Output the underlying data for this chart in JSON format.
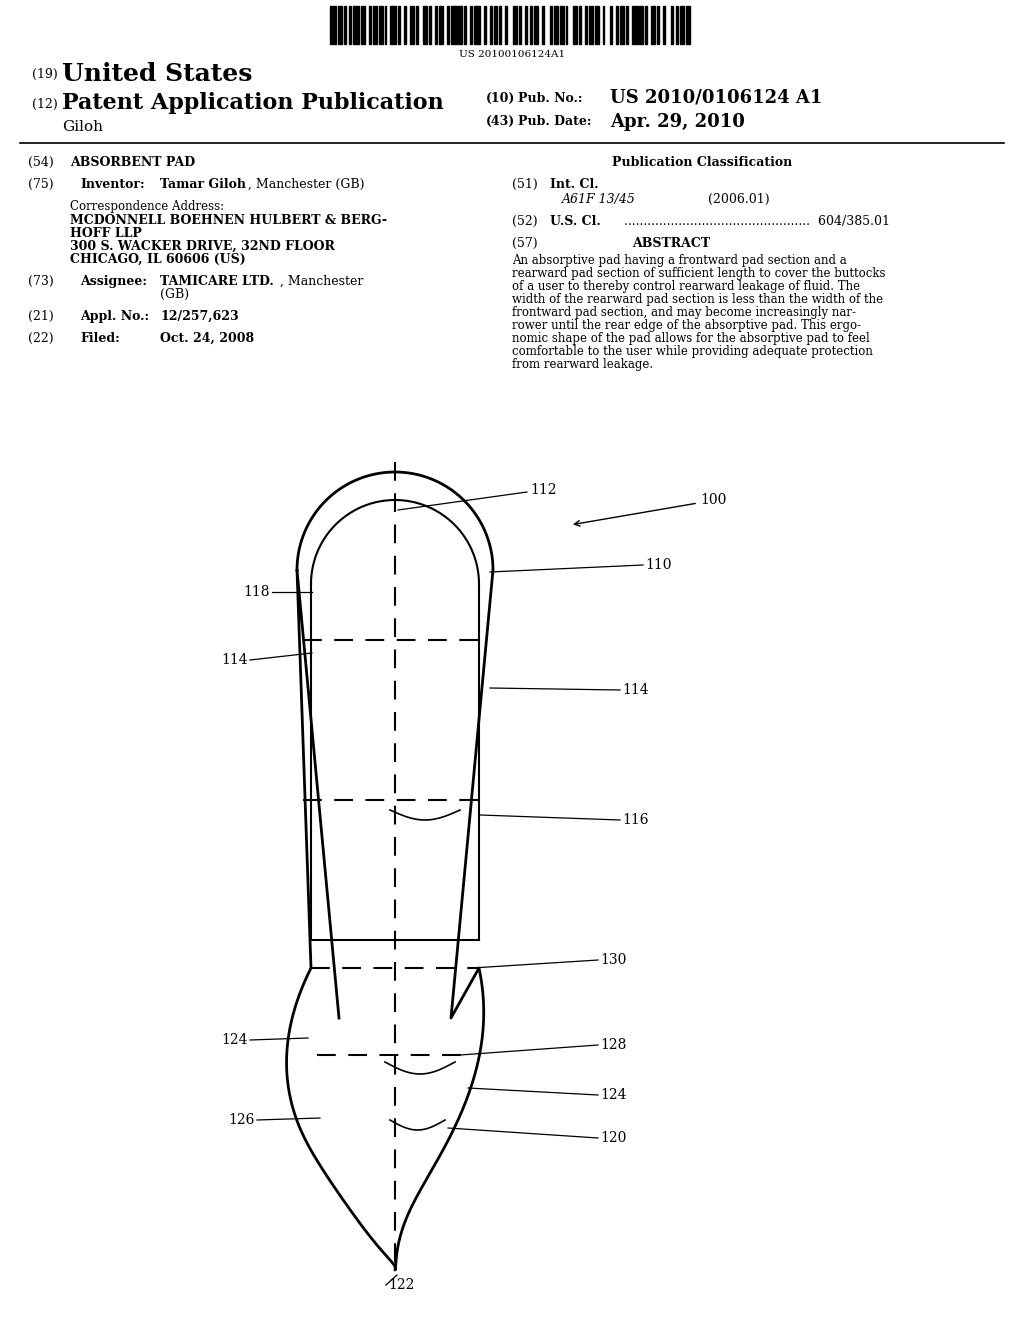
{
  "background_color": "#ffffff",
  "barcode_text": "US 20100106124A1"
}
